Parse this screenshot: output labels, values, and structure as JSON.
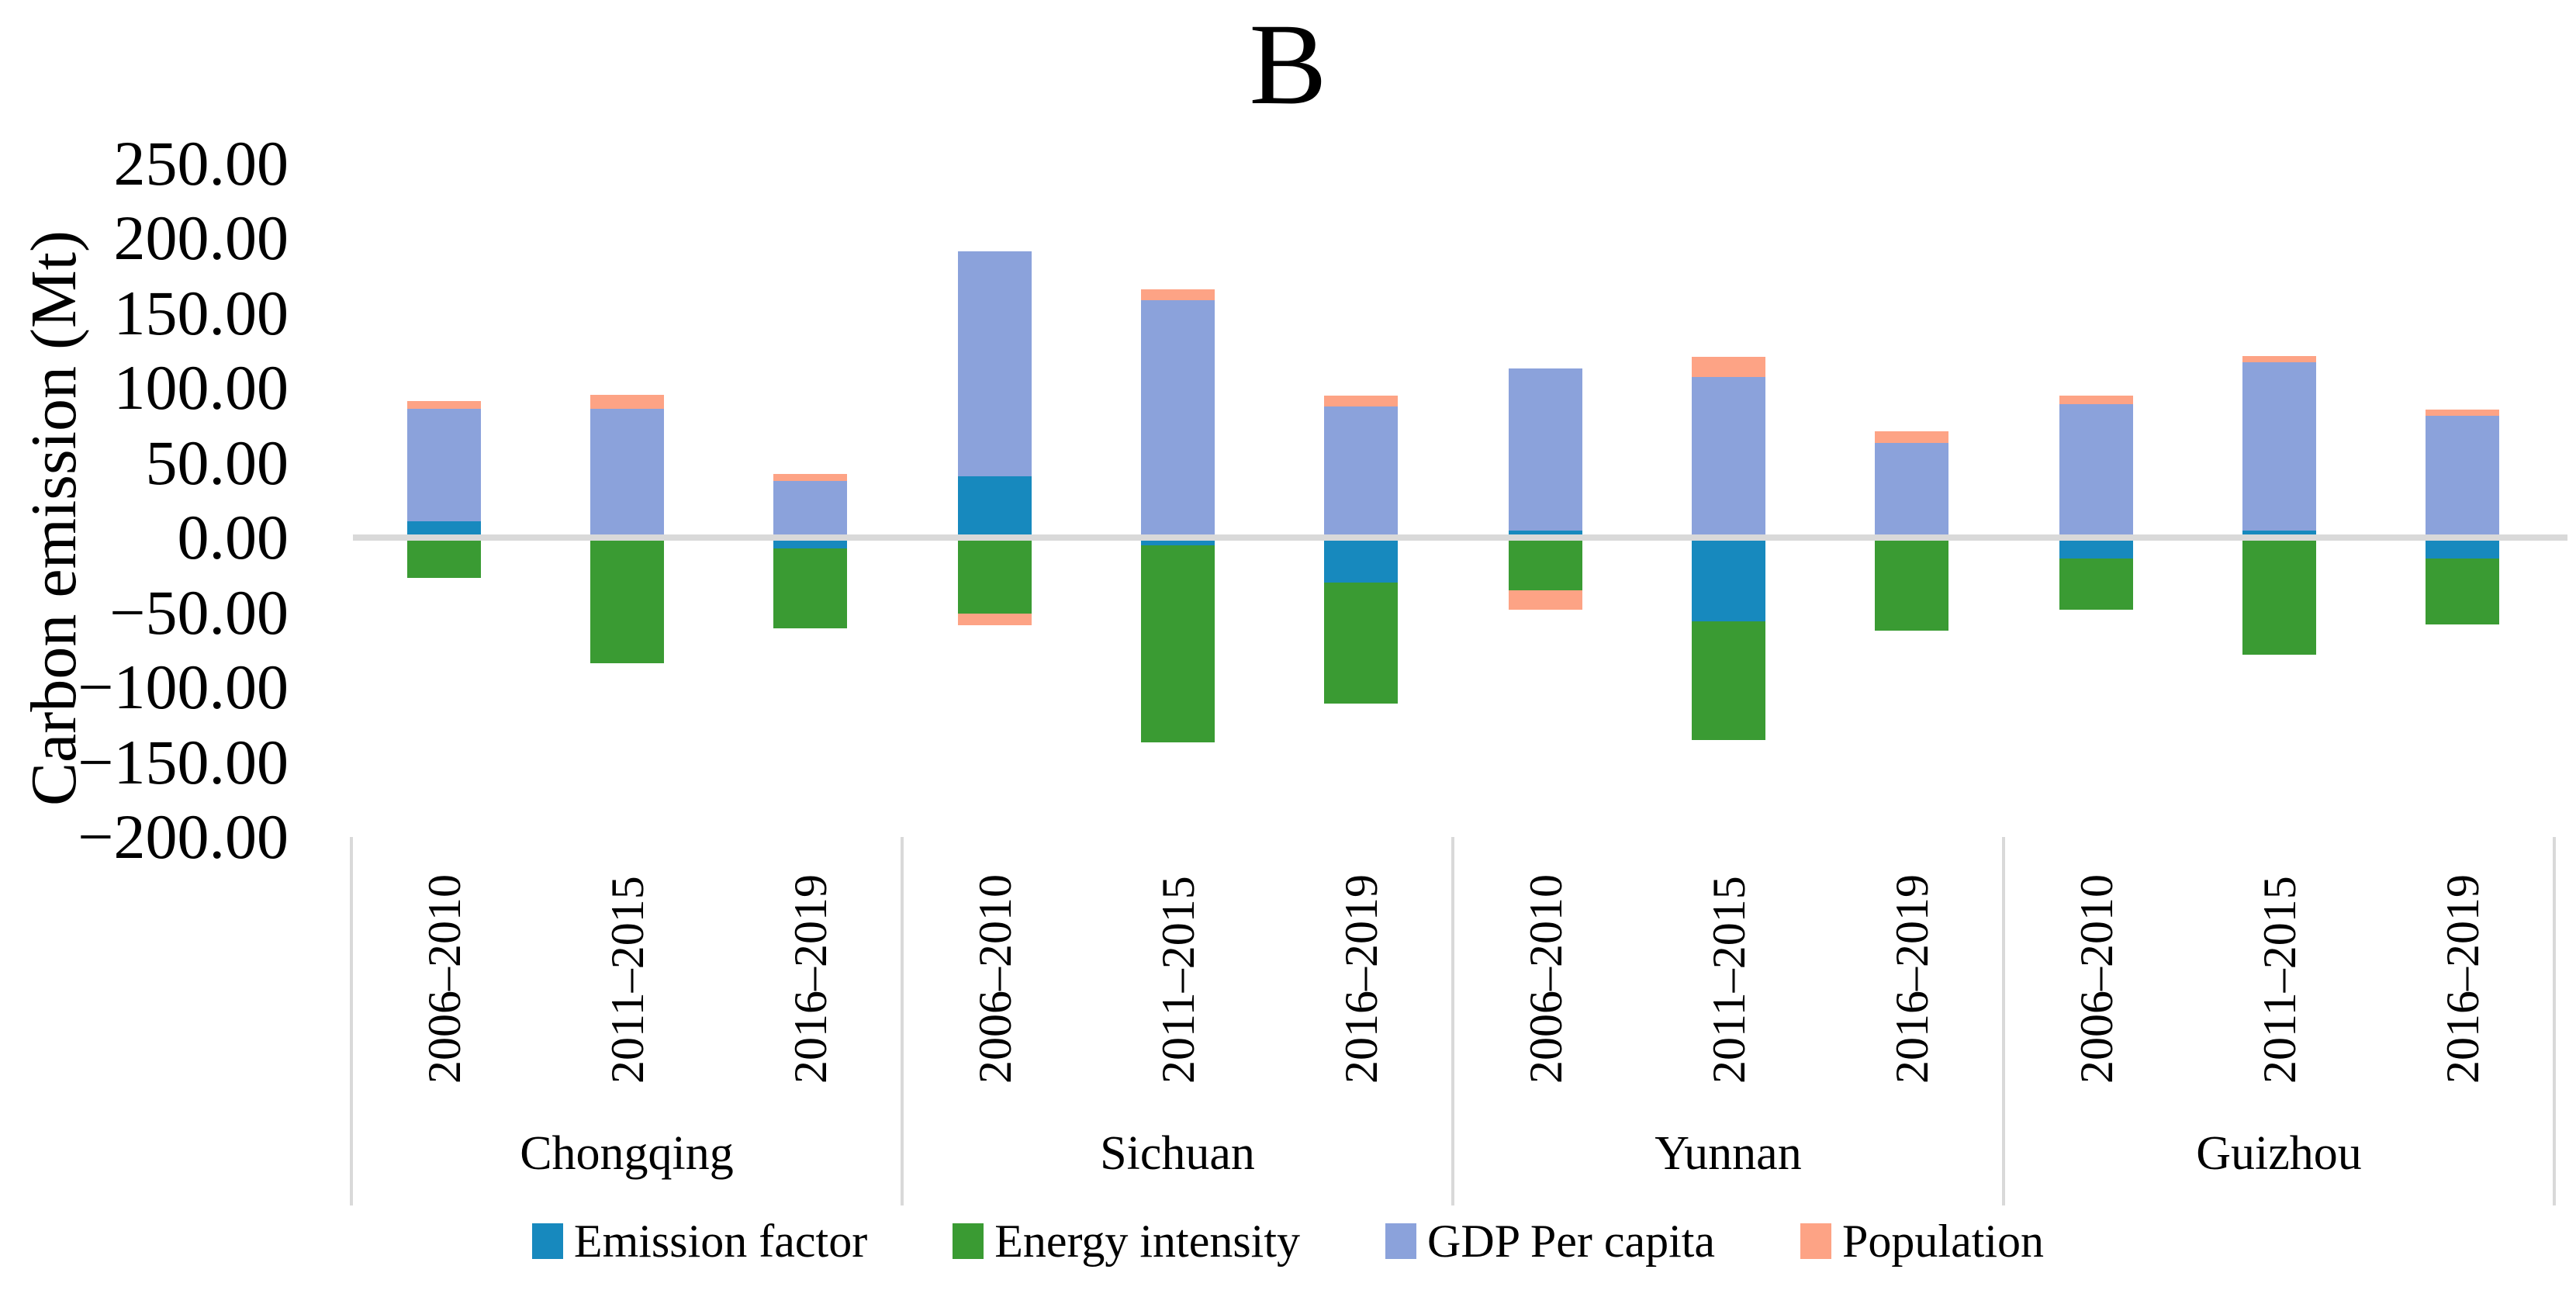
{
  "title": "B",
  "y_axis": {
    "label": "Carbon emission (Mt)",
    "tick_labels": [
      "250.00",
      "200.00",
      "150.00",
      "100.00",
      "50.00",
      "0.00",
      "−50.00",
      "−100.00",
      "−150.00",
      "−200.00"
    ],
    "tick_values": [
      250,
      200,
      150,
      100,
      50,
      0,
      -50,
      -100,
      -150,
      -200
    ]
  },
  "x_axis": {
    "groups": [
      "Chongqing",
      "Sichuan",
      "Yunnan",
      "Guizhou"
    ],
    "periods": [
      "2006–2010",
      "2011–2015",
      "2016–2019"
    ]
  },
  "colors": {
    "emission_factor": "#1789BE",
    "energy_intensity": "#3A9B33",
    "gdp_per_capita": "#8BA2DB",
    "population": "#FDA385",
    "axis_line": "#D9D9D9"
  },
  "chart_data": {
    "type": "bar",
    "stacked": true,
    "title": "B",
    "xlabel": "",
    "ylabel": "Carbon emission (Mt)",
    "ylim": [
      -200,
      250
    ],
    "ytick_step": 50,
    "grid": false,
    "legend_position": "bottom",
    "groups": [
      "Chongqing",
      "Sichuan",
      "Yunnan",
      "Guizhou"
    ],
    "categories": [
      "Chongqing 2006–2010",
      "Chongqing 2011–2015",
      "Chongqing 2016–2019",
      "Sichuan 2006–2010",
      "Sichuan 2011–2015",
      "Sichuan 2016–2019",
      "Yunnan 2006–2010",
      "Yunnan 2011–2015",
      "Yunnan 2016–2019",
      "Guizhou 2006–2010",
      "Guizhou 2011–2015",
      "Guizhou 2016–2019"
    ],
    "series": [
      {
        "name": "Emission factor",
        "color": "#1789BE",
        "values": [
          11,
          0,
          -7,
          41,
          -5,
          -30,
          4.5,
          -56,
          0,
          -14,
          4.5,
          -14
        ]
      },
      {
        "name": "Energy intensity",
        "color": "#3A9B33",
        "values": [
          -27,
          -84,
          -53.5,
          -51,
          -132,
          -81,
          -35,
          -79,
          -62,
          -34,
          -78,
          -44
        ]
      },
      {
        "name": "GDP Per capita",
        "color": "#8BA2DB",
        "values": [
          75,
          86,
          38,
          150,
          158.5,
          87.5,
          108.5,
          107,
          63,
          89,
          112.5,
          81.5
        ]
      },
      {
        "name": "Population",
        "color": "#FDA385",
        "values": [
          5,
          9.5,
          4.5,
          -7.5,
          7.5,
          7.5,
          -13,
          13.5,
          8,
          6,
          4,
          4
        ]
      }
    ]
  }
}
